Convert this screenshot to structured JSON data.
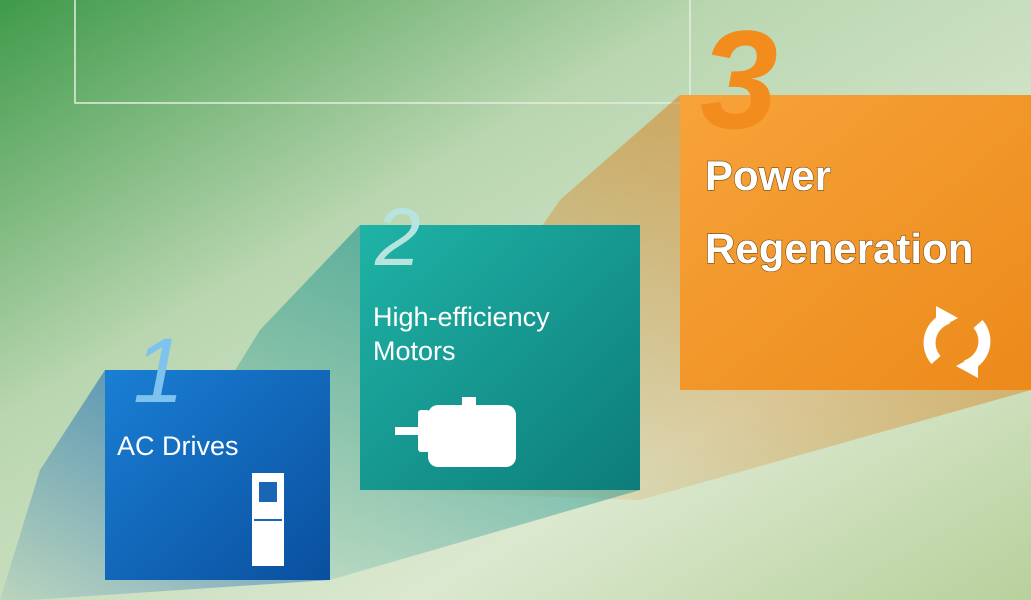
{
  "steps": [
    {
      "number": "1",
      "lines": [
        "AC Drives"
      ]
    },
    {
      "number": "2",
      "lines": [
        "High-efficiency",
        "Motors"
      ]
    },
    {
      "number": "3",
      "lines": [
        "Power",
        "Regeneration"
      ]
    }
  ]
}
